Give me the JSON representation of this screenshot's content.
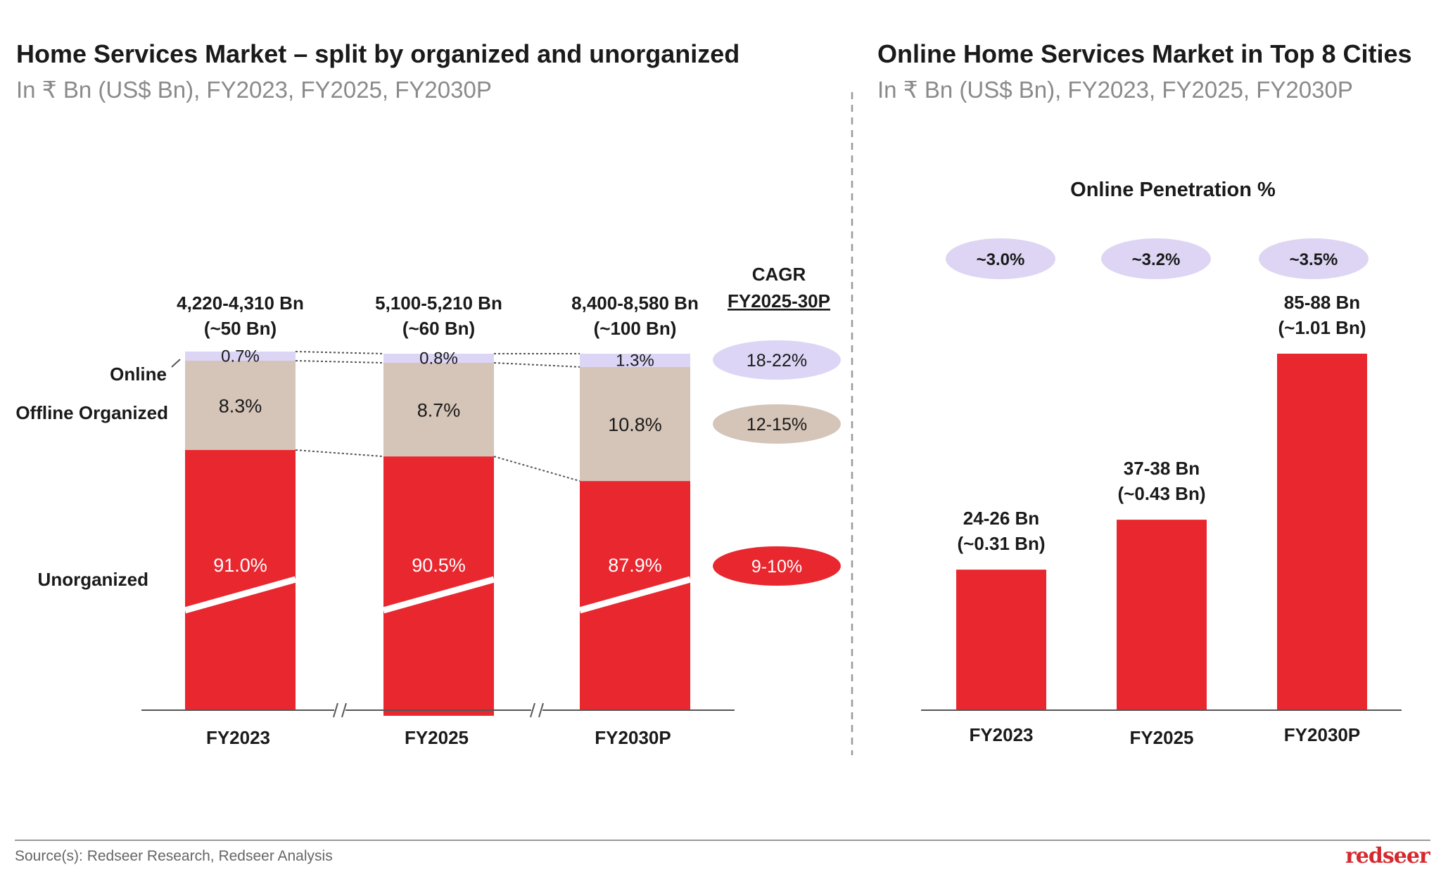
{
  "left": {
    "title": "Home Services Market – split by organized and unorganized",
    "subtitle": "In ₹ Bn (US$ Bn), FY2023, FY2025, FY2030P"
  },
  "right": {
    "title": "Online Home Services Market in Top 8 Cities",
    "subtitle": "In ₹ Bn (US$ Bn), FY2023, FY2025, FY2030P"
  },
  "footer": {
    "source": "Source(s): Redseer Research, Redseer Analysis",
    "logo": "redseer"
  },
  "colors": {
    "online": "#dcd5f5",
    "offline_organized": "#d5c4b8",
    "unorganized": "#e8272f",
    "pill": "#ddd5f3"
  },
  "chart_data": [
    {
      "type": "bar",
      "stacked": true,
      "title": "Home Services Market – split by organized and unorganized",
      "categories": [
        "FY2023",
        "FY2025",
        "FY2030P"
      ],
      "totals": [
        {
          "line1": "4,220-4,310 Bn",
          "line2": "(~50 Bn)"
        },
        {
          "line1": "5,100-5,210 Bn",
          "line2": "(~60 Bn)"
        },
        {
          "line1": "8,400-8,580 Bn",
          "line2": "(~100 Bn)"
        }
      ],
      "series": [
        {
          "name": "Unorganized",
          "values": [
            91.0,
            90.5,
            87.9
          ],
          "labels": [
            "91.0%",
            "90.5%",
            "87.9%"
          ],
          "cagr": "9-10%"
        },
        {
          "name": "Offline Organized",
          "values": [
            8.3,
            8.7,
            10.8
          ],
          "labels": [
            "8.3%",
            "8.7%",
            "10.8%"
          ],
          "cagr": "12-15%"
        },
        {
          "name": "Online",
          "values": [
            0.7,
            0.8,
            1.3
          ],
          "labels": [
            "0.7%",
            "0.8%",
            "1.3%"
          ],
          "cagr": "18-22%"
        }
      ],
      "cagr_header": "CAGR",
      "cagr_period": "FY2025-30P",
      "axis_breaks": true
    },
    {
      "type": "bar",
      "title": "Online Home Services Market in Top 8 Cities",
      "categories": [
        "FY2023",
        "FY2025",
        "FY2030P"
      ],
      "values": [
        25,
        37.5,
        86.5
      ],
      "value_labels": [
        {
          "line1": "24-26 Bn",
          "line2": "(~0.31 Bn)"
        },
        {
          "line1": "37-38 Bn",
          "line2": "(~0.43 Bn)"
        },
        {
          "line1": "85-88 Bn",
          "line2": "(~1.01 Bn)"
        }
      ],
      "penetration_title": "Online Penetration %",
      "penetration": [
        "~3.0%",
        "~3.2%",
        "~3.5%"
      ]
    }
  ]
}
